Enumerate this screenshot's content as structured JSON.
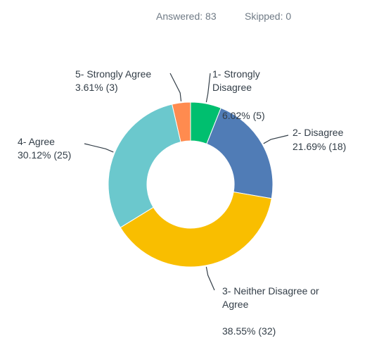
{
  "chart_data": {
    "type": "pie",
    "donut": true,
    "stats": [
      "Answered: 83",
      "Skipped: 0"
    ],
    "categories": [
      "1- Strongly Disagree",
      "2- Disagree",
      "3- Neither Disagree or Agree",
      "4- Agree",
      "5- Strongly Agree"
    ],
    "values": [
      6.02,
      21.69,
      38.55,
      30.12,
      3.61
    ],
    "value_labels": [
      "6.02% (5)",
      "21.69% (18)",
      "38.55% (32)",
      "30.12% (25)",
      "3.61% (3)"
    ],
    "colors": [
      "#00bf6f",
      "#507cb6",
      "#f9be00",
      "#6bc8cd",
      "#ff8b4f"
    ]
  }
}
